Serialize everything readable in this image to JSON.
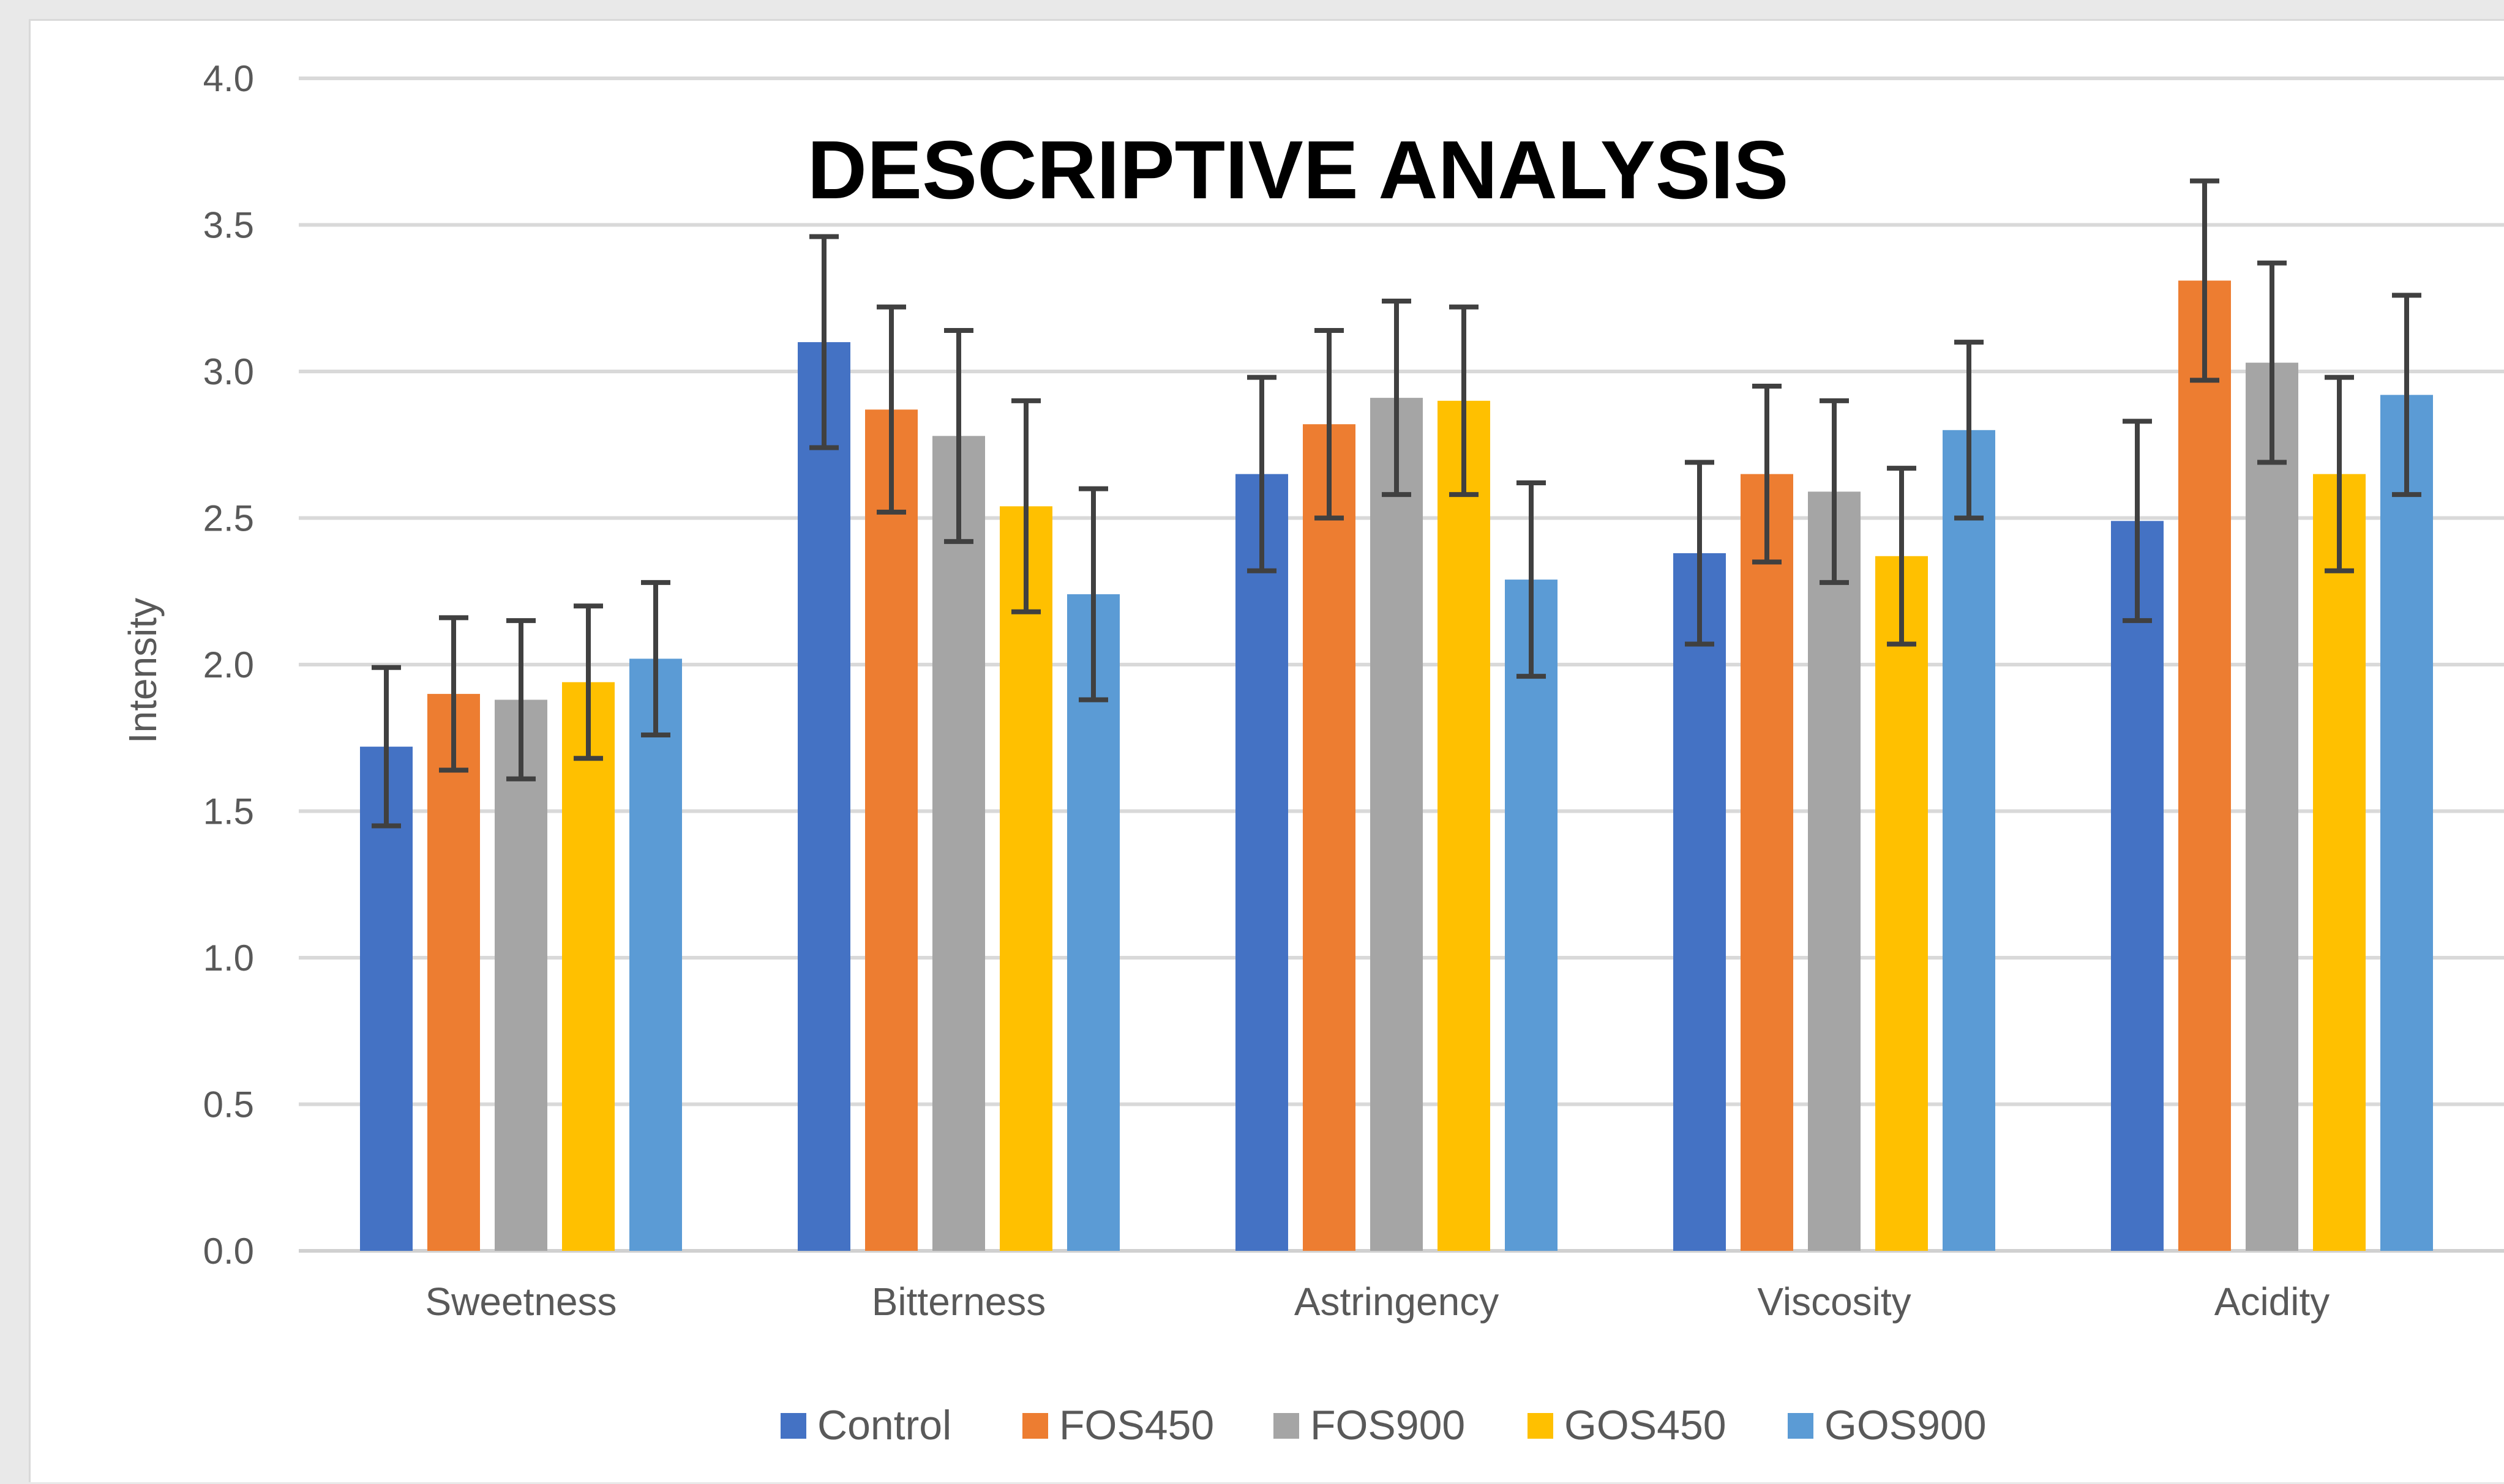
{
  "chart_data": {
    "type": "bar",
    "title": "DESCRIPTIVE ANALYSIS",
    "xlabel": "",
    "ylabel": "Intensity",
    "ylim": [
      0,
      4.0
    ],
    "yticks": [
      "0.0",
      "0.5",
      "1.0",
      "1.5",
      "2.0",
      "2.5",
      "3.0",
      "3.5",
      "4.0"
    ],
    "grid": true,
    "legend_position": "bottom",
    "categories": [
      "Sweetness",
      "Bitterness",
      "Astringency",
      "Viscosity",
      "Acidity"
    ],
    "series": [
      {
        "name": "Control",
        "color": "#4472C4",
        "values": [
          1.72,
          3.1,
          2.65,
          2.38,
          2.49
        ],
        "errors": [
          0.27,
          0.36,
          0.33,
          0.31,
          0.34
        ]
      },
      {
        "name": "FOS450",
        "color": "#ED7D31",
        "values": [
          1.9,
          2.87,
          2.82,
          2.65,
          3.31
        ],
        "errors": [
          0.26,
          0.35,
          0.32,
          0.3,
          0.34
        ]
      },
      {
        "name": "FOS900",
        "color": "#A5A5A5",
        "values": [
          1.88,
          2.78,
          2.91,
          2.59,
          3.03
        ],
        "errors": [
          0.27,
          0.36,
          0.33,
          0.31,
          0.34
        ]
      },
      {
        "name": "GOS450",
        "color": "#FFC000",
        "values": [
          1.94,
          2.54,
          2.9,
          2.37,
          2.65
        ],
        "errors": [
          0.26,
          0.36,
          0.32,
          0.3,
          0.33
        ]
      },
      {
        "name": "GOS900",
        "color": "#5B9BD5",
        "values": [
          2.02,
          2.24,
          2.29,
          2.8,
          2.92
        ],
        "errors": [
          0.26,
          0.36,
          0.33,
          0.3,
          0.34
        ]
      }
    ]
  }
}
